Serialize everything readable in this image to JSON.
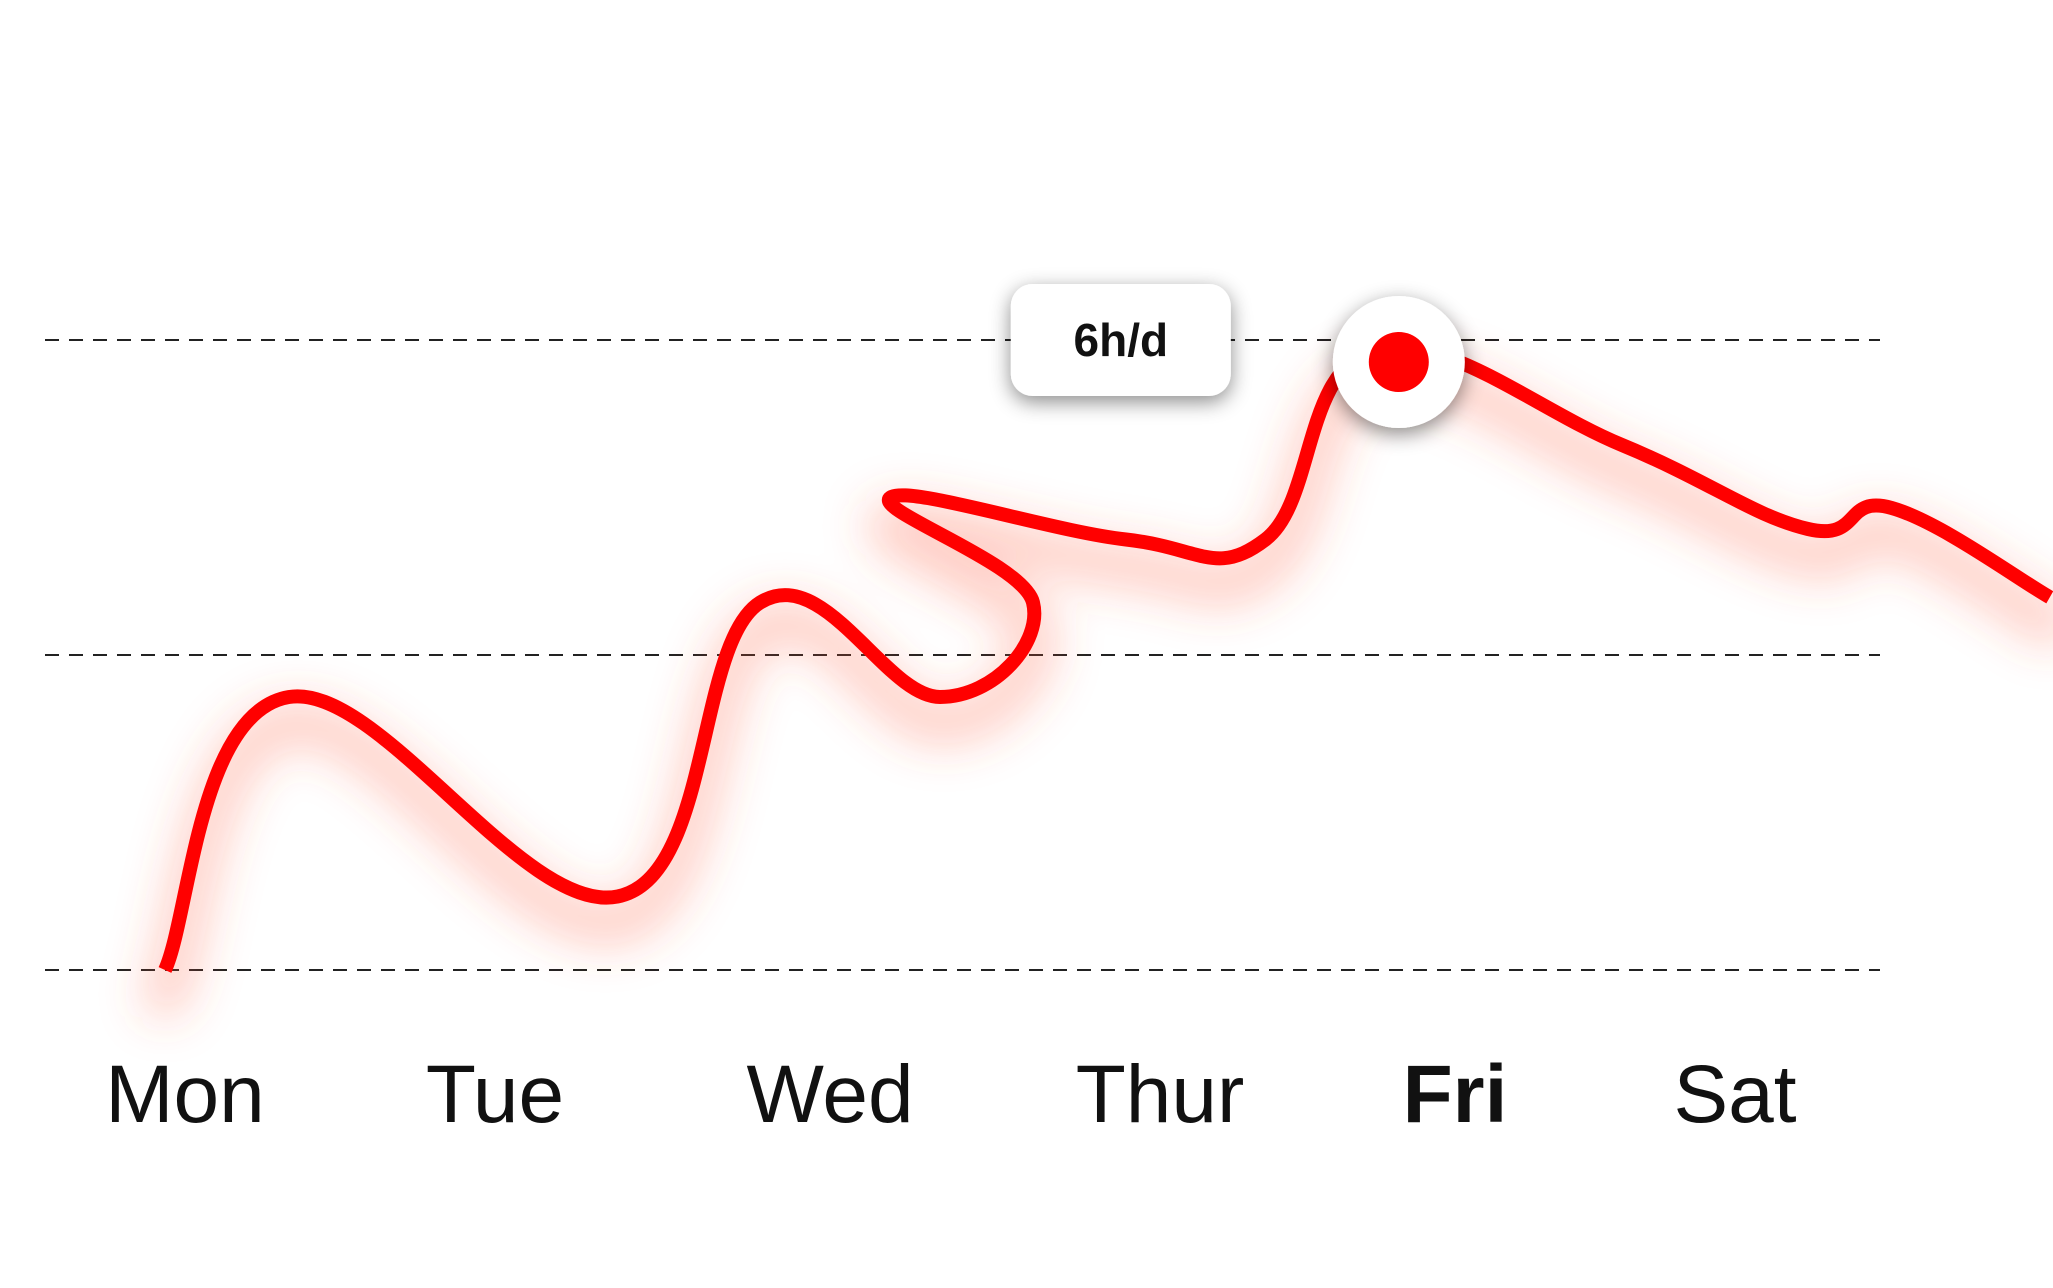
{
  "chart_data": {
    "type": "line",
    "categories": [
      "Mon",
      "Tue",
      "Wed",
      "Thur",
      "Fri",
      "Sat"
    ],
    "active_category": "Fri",
    "series": [
      {
        "color": "#ff0000",
        "x": [
          0.0,
          0.4,
          1.46,
          1.92,
          2.5,
          2.8,
          2.34,
          3.1,
          3.55,
          3.9,
          4.7,
          5.3,
          5.57,
          6.08
        ],
        "values": [
          0,
          2.6,
          0.7,
          3.5,
          2.6,
          3.5,
          4.5,
          4.1,
          4.1,
          5.9,
          5.0,
          4.2,
          4.4,
          3.55
        ]
      }
    ],
    "highlight": {
      "x": 3.98,
      "value": 6,
      "label": "6h/d",
      "marker_color": "#ff0000"
    },
    "gridlines": [
      0,
      3,
      6
    ],
    "ylim": [
      0,
      6
    ],
    "grid": true,
    "legend": false
  }
}
